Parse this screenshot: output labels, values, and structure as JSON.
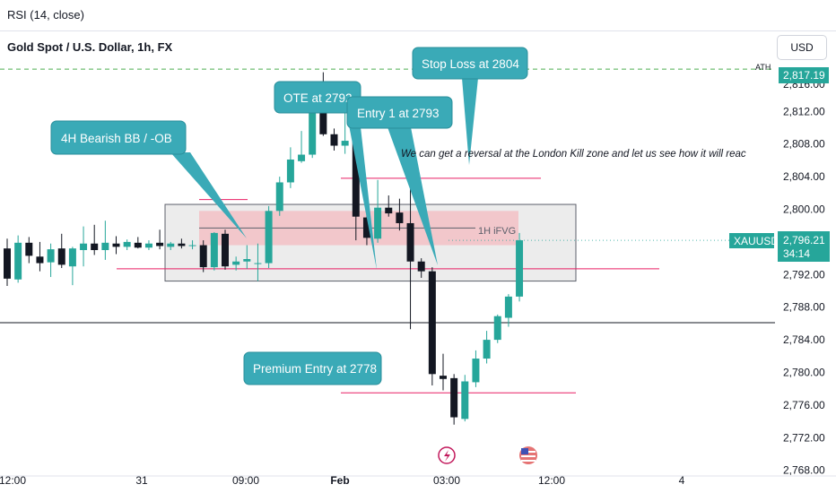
{
  "indicator_label": "RSI (14, close)",
  "currency_button": "USD",
  "symbol_title": "Gold Spot / U.S. Dollar, 1h, FX",
  "price_tag": {
    "symbol": "XAUUSD",
    "price": "2,796.21",
    "countdown": "34:14"
  },
  "ath": {
    "label": "ATH",
    "value": "2,817.19"
  },
  "annotations": {
    "ob": "4H Bearish BB / -OB",
    "ote": "OTE at 2792",
    "entry1": "Entry 1 at 2793",
    "stop": "Stop Loss at 2804",
    "premium": "Premium Entry at 2778",
    "comment": "We can  get a reversal at the London Kill zone and let us see how it will reac",
    "fvg": "1H iFVG"
  },
  "colors": {
    "up": "#26a69a",
    "down": "#131722",
    "callout": "#3aaab7",
    "level": "#e91e63",
    "fvg": "#f5b8bd",
    "range_box": "#d9d9d9",
    "ath_line": "#4caf50"
  },
  "chart_data": {
    "type": "candlestick",
    "symbol": "Gold Spot / U.S. Dollar",
    "timeframe": "1h",
    "y_axis": {
      "ticks": [
        2816,
        2812,
        2808,
        2804,
        2800,
        2796,
        2792,
        2788,
        2784,
        2780,
        2776,
        2772,
        2768
      ],
      "tick_labels": [
        "2,816.00",
        "2,812.00",
        "2,808.00",
        "2,804.00",
        "2,800.00",
        "2,796.00",
        "2,792.00",
        "2,788.00",
        "2,784.00",
        "2,780.00",
        "2,776.00",
        "2,772.00",
        "2,768.00"
      ],
      "range": [
        2767,
        2822
      ]
    },
    "x_axis": {
      "tick_labels": [
        "12:00",
        "31",
        "09:00",
        "Feb",
        "03:00",
        "12:00",
        "4"
      ]
    },
    "candles": [
      {
        "o": 2795.2,
        "h": 2796.4,
        "l": 2790.6,
        "c": 2791.5
      },
      {
        "o": 2791.4,
        "h": 2796.8,
        "l": 2791.0,
        "c": 2795.9
      },
      {
        "o": 2795.9,
        "h": 2796.6,
        "l": 2793.4,
        "c": 2794.3
      },
      {
        "o": 2794.2,
        "h": 2796.0,
        "l": 2792.4,
        "c": 2793.4
      },
      {
        "o": 2793.5,
        "h": 2795.8,
        "l": 2791.7,
        "c": 2795.1
      },
      {
        "o": 2795.2,
        "h": 2797.0,
        "l": 2792.8,
        "c": 2793.2
      },
      {
        "o": 2793.0,
        "h": 2795.4,
        "l": 2790.7,
        "c": 2795.2
      },
      {
        "o": 2795.0,
        "h": 2797.9,
        "l": 2793.0,
        "c": 2795.8
      },
      {
        "o": 2795.8,
        "h": 2798.1,
        "l": 2794.4,
        "c": 2795.0
      },
      {
        "o": 2795.0,
        "h": 2798.6,
        "l": 2793.8,
        "c": 2795.9
      },
      {
        "o": 2795.8,
        "h": 2796.7,
        "l": 2794.5,
        "c": 2795.4
      },
      {
        "o": 2795.4,
        "h": 2796.3,
        "l": 2795.0,
        "c": 2796.0
      },
      {
        "o": 2795.9,
        "h": 2796.6,
        "l": 2795.2,
        "c": 2795.3
      },
      {
        "o": 2795.3,
        "h": 2796.2,
        "l": 2795.0,
        "c": 2795.8
      },
      {
        "o": 2795.9,
        "h": 2797.5,
        "l": 2795.1,
        "c": 2795.5
      },
      {
        "o": 2795.4,
        "h": 2796.0,
        "l": 2795.0,
        "c": 2795.8
      },
      {
        "o": 2795.8,
        "h": 2796.4,
        "l": 2795.2,
        "c": 2795.5
      },
      {
        "o": 2795.5,
        "h": 2796.2,
        "l": 2795.1,
        "c": 2795.6
      },
      {
        "o": 2795.6,
        "h": 2796.2,
        "l": 2792.3,
        "c": 2792.9
      },
      {
        "o": 2792.9,
        "h": 2797.2,
        "l": 2792.5,
        "c": 2797.1
      },
      {
        "o": 2797.0,
        "h": 2797.5,
        "l": 2792.6,
        "c": 2793.0
      },
      {
        "o": 2793.2,
        "h": 2794.2,
        "l": 2792.5,
        "c": 2793.6
      },
      {
        "o": 2793.6,
        "h": 2795.6,
        "l": 2792.7,
        "c": 2793.9
      },
      {
        "o": 2793.3,
        "h": 2795.8,
        "l": 2791.2,
        "c": 2793.4
      },
      {
        "o": 2793.4,
        "h": 2800.4,
        "l": 2792.8,
        "c": 2799.8
      },
      {
        "o": 2799.8,
        "h": 2804.0,
        "l": 2799.2,
        "c": 2803.3
      },
      {
        "o": 2803.3,
        "h": 2807.6,
        "l": 2802.6,
        "c": 2806.1
      },
      {
        "o": 2805.9,
        "h": 2809.6,
        "l": 2805.7,
        "c": 2806.7
      },
      {
        "o": 2806.7,
        "h": 2812.6,
        "l": 2806.3,
        "c": 2812.1
      },
      {
        "o": 2812.2,
        "h": 2816.8,
        "l": 2809.0,
        "c": 2809.2
      },
      {
        "o": 2809.2,
        "h": 2809.9,
        "l": 2807.2,
        "c": 2807.8
      },
      {
        "o": 2807.8,
        "h": 2814.5,
        "l": 2806.8,
        "c": 2808.4
      },
      {
        "o": 2808.4,
        "h": 2808.9,
        "l": 2796.2,
        "c": 2799.1
      },
      {
        "o": 2799.0,
        "h": 2799.6,
        "l": 2795.6,
        "c": 2796.5
      },
      {
        "o": 2796.4,
        "h": 2803.6,
        "l": 2795.9,
        "c": 2800.2
      },
      {
        "o": 2800.2,
        "h": 2801.7,
        "l": 2799.1,
        "c": 2799.5
      },
      {
        "o": 2799.6,
        "h": 2801.3,
        "l": 2797.4,
        "c": 2798.3
      },
      {
        "o": 2798.3,
        "h": 2803.7,
        "l": 2785.3,
        "c": 2793.6
      },
      {
        "o": 2793.6,
        "h": 2794.0,
        "l": 2791.6,
        "c": 2792.4
      },
      {
        "o": 2792.4,
        "h": 2792.9,
        "l": 2778.4,
        "c": 2779.8
      },
      {
        "o": 2779.6,
        "h": 2782.3,
        "l": 2777.8,
        "c": 2779.2
      },
      {
        "o": 2779.3,
        "h": 2779.8,
        "l": 2773.6,
        "c": 2774.5
      },
      {
        "o": 2774.3,
        "h": 2779.7,
        "l": 2774.0,
        "c": 2778.9
      },
      {
        "o": 2778.8,
        "h": 2782.7,
        "l": 2778.2,
        "c": 2781.7
      },
      {
        "o": 2781.7,
        "h": 2785.1,
        "l": 2781.1,
        "c": 2784.0
      },
      {
        "o": 2784.0,
        "h": 2787.1,
        "l": 2783.6,
        "c": 2786.9
      },
      {
        "o": 2786.7,
        "h": 2789.6,
        "l": 2785.6,
        "c": 2789.3
      },
      {
        "o": 2789.3,
        "h": 2797.1,
        "l": 2788.7,
        "c": 2796.2
      }
    ],
    "levels": [
      {
        "price": 2817.19,
        "style": "dashed",
        "color": "#4caf50"
      },
      {
        "price": 2803.8,
        "color": "#e91e63"
      },
      {
        "price": 2792.7,
        "color": "#e91e63"
      },
      {
        "price": 2777.5,
        "color": "#e91e63"
      },
      {
        "price": 2786.1,
        "color": "#131722"
      },
      {
        "price": 2796.2,
        "style": "dotted",
        "color": "#26a69a"
      }
    ],
    "zones": [
      {
        "name": "range box",
        "top": 2800.6,
        "bottom": 2791.2
      },
      {
        "name": "1H iFVG",
        "top": 2799.8,
        "bottom": 2795.6
      }
    ]
  }
}
